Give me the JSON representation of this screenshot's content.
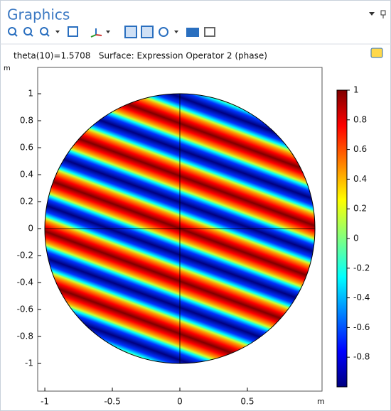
{
  "window": {
    "title": "Graphics"
  },
  "chart_data": {
    "type": "surface",
    "title": "theta(10)=1.5708   Surface: Expression Operator 2 (phase)",
    "x_unit": "m",
    "y_unit": "m",
    "xlim": [
      -1.053,
      1.053
    ],
    "ylim": [
      -1.205,
      1.195
    ],
    "xticks": [
      -1,
      -0.5,
      0,
      0.5
    ],
    "yticks": [
      -1,
      -0.8,
      -0.6,
      -0.4,
      -0.2,
      0,
      0.2,
      0.4,
      0.6,
      0.8,
      1
    ],
    "colorbar": {
      "clim": [
        -1,
        1
      ],
      "ticks": [
        -0.8,
        -0.6,
        -0.4,
        -0.2,
        0,
        0.2,
        0.4,
        0.6,
        0.8,
        1
      ]
    }
  }
}
